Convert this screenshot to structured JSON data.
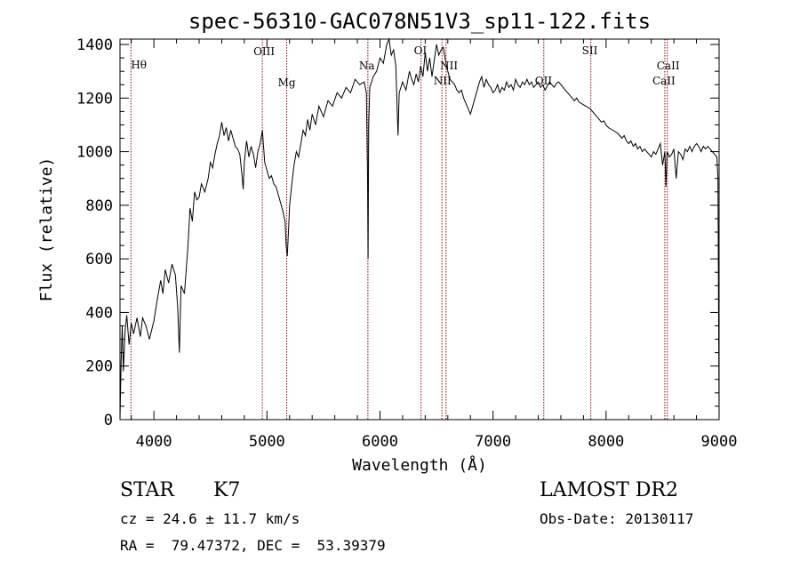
{
  "chart_data": {
    "type": "line",
    "title": "spec-56310-GAC078N51V3_sp11-122.fits",
    "xlabel": "Wavelength (Å)",
    "ylabel": "Flux (relative)",
    "xlim": [
      3700,
      9000
    ],
    "ylim": [
      0,
      1420
    ],
    "x_ticks": [
      4000,
      5000,
      6000,
      7000,
      8000,
      9000
    ],
    "y_ticks": [
      0,
      200,
      400,
      600,
      800,
      1000,
      1200,
      1400
    ],
    "grid": false,
    "line_color": "#000000",
    "marker_color": "#8b0000",
    "series": [
      {
        "points": [
          [
            3700,
            0
          ],
          [
            3710,
            220
          ],
          [
            3720,
            350
          ],
          [
            3730,
            180
          ],
          [
            3745,
            330
          ],
          [
            3760,
            390
          ],
          [
            3780,
            280
          ],
          [
            3800,
            360
          ],
          [
            3820,
            320
          ],
          [
            3850,
            380
          ],
          [
            3880,
            310
          ],
          [
            3900,
            380
          ],
          [
            3930,
            350
          ],
          [
            3960,
            300
          ],
          [
            4000,
            370
          ],
          [
            4030,
            450
          ],
          [
            4060,
            520
          ],
          [
            4080,
            470
          ],
          [
            4100,
            560
          ],
          [
            4130,
            510
          ],
          [
            4160,
            580
          ],
          [
            4190,
            540
          ],
          [
            4210,
            420
          ],
          [
            4225,
            250
          ],
          [
            4240,
            500
          ],
          [
            4270,
            470
          ],
          [
            4300,
            640
          ],
          [
            4320,
            790
          ],
          [
            4340,
            740
          ],
          [
            4360,
            850
          ],
          [
            4380,
            820
          ],
          [
            4400,
            830
          ],
          [
            4420,
            880
          ],
          [
            4450,
            850
          ],
          [
            4480,
            900
          ],
          [
            4500,
            960
          ],
          [
            4520,
            940
          ],
          [
            4540,
            990
          ],
          [
            4560,
            1030
          ],
          [
            4580,
            1060
          ],
          [
            4600,
            1110
          ],
          [
            4620,
            1060
          ],
          [
            4640,
            1090
          ],
          [
            4660,
            1040
          ],
          [
            4680,
            1080
          ],
          [
            4700,
            1050
          ],
          [
            4720,
            1020
          ],
          [
            4740,
            1010
          ],
          [
            4760,
            990
          ],
          [
            4780,
            910
          ],
          [
            4790,
            860
          ],
          [
            4800,
            960
          ],
          [
            4820,
            1040
          ],
          [
            4840,
            980
          ],
          [
            4860,
            1020
          ],
          [
            4880,
            990
          ],
          [
            4900,
            940
          ],
          [
            4920,
            1000
          ],
          [
            4940,
            1030
          ],
          [
            4960,
            1080
          ],
          [
            4980,
            960
          ],
          [
            5000,
            930
          ],
          [
            5020,
            900
          ],
          [
            5040,
            910
          ],
          [
            5060,
            880
          ],
          [
            5080,
            870
          ],
          [
            5100,
            840
          ],
          [
            5120,
            810
          ],
          [
            5140,
            780
          ],
          [
            5160,
            740
          ],
          [
            5170,
            650
          ],
          [
            5180,
            610
          ],
          [
            5190,
            700
          ],
          [
            5200,
            800
          ],
          [
            5220,
            880
          ],
          [
            5240,
            950
          ],
          [
            5260,
            1000
          ],
          [
            5280,
            980
          ],
          [
            5300,
            1030
          ],
          [
            5320,
            1080
          ],
          [
            5340,
            1060
          ],
          [
            5360,
            1120
          ],
          [
            5380,
            1080
          ],
          [
            5400,
            1140
          ],
          [
            5430,
            1100
          ],
          [
            5460,
            1170
          ],
          [
            5500,
            1130
          ],
          [
            5540,
            1190
          ],
          [
            5580,
            1170
          ],
          [
            5620,
            1220
          ],
          [
            5660,
            1200
          ],
          [
            5700,
            1240
          ],
          [
            5740,
            1220
          ],
          [
            5780,
            1270
          ],
          [
            5820,
            1250
          ],
          [
            5860,
            1260
          ],
          [
            5880,
            1220
          ],
          [
            5890,
            900
          ],
          [
            5895,
            600
          ],
          [
            5900,
            1100
          ],
          [
            5910,
            1240
          ],
          [
            5940,
            1280
          ],
          [
            5970,
            1300
          ],
          [
            6000,
            1350
          ],
          [
            6030,
            1330
          ],
          [
            6060,
            1400
          ],
          [
            6080,
            1420
          ],
          [
            6100,
            1360
          ],
          [
            6120,
            1380
          ],
          [
            6140,
            1320
          ],
          [
            6150,
            1180
          ],
          [
            6160,
            1060
          ],
          [
            6170,
            1220
          ],
          [
            6200,
            1260
          ],
          [
            6230,
            1230
          ],
          [
            6260,
            1300
          ],
          [
            6280,
            1270
          ],
          [
            6300,
            1250
          ],
          [
            6320,
            1290
          ],
          [
            6340,
            1260
          ],
          [
            6360,
            1320
          ],
          [
            6380,
            1280
          ],
          [
            6400,
            1370
          ],
          [
            6420,
            1300
          ],
          [
            6440,
            1350
          ],
          [
            6460,
            1280
          ],
          [
            6480,
            1340
          ],
          [
            6500,
            1400
          ],
          [
            6520,
            1360
          ],
          [
            6540,
            1380
          ],
          [
            6560,
            1390
          ],
          [
            6580,
            1340
          ],
          [
            6600,
            1300
          ],
          [
            6620,
            1270
          ],
          [
            6640,
            1260
          ],
          [
            6660,
            1250
          ],
          [
            6680,
            1230
          ],
          [
            6700,
            1220
          ],
          [
            6720,
            1230
          ],
          [
            6740,
            1200
          ],
          [
            6760,
            1180
          ],
          [
            6780,
            1160
          ],
          [
            6800,
            1140
          ],
          [
            6820,
            1170
          ],
          [
            6840,
            1200
          ],
          [
            6860,
            1230
          ],
          [
            6880,
            1260
          ],
          [
            6900,
            1280
          ],
          [
            6920,
            1240
          ],
          [
            6940,
            1270
          ],
          [
            6960,
            1250
          ],
          [
            6980,
            1240
          ],
          [
            7000,
            1220
          ],
          [
            7020,
            1230
          ],
          [
            7040,
            1250
          ],
          [
            7060,
            1220
          ],
          [
            7080,
            1240
          ],
          [
            7100,
            1230
          ],
          [
            7120,
            1260
          ],
          [
            7140,
            1240
          ],
          [
            7160,
            1250
          ],
          [
            7180,
            1230
          ],
          [
            7200,
            1270
          ],
          [
            7220,
            1250
          ],
          [
            7240,
            1240
          ],
          [
            7260,
            1260
          ],
          [
            7280,
            1250
          ],
          [
            7300,
            1270
          ],
          [
            7320,
            1250
          ],
          [
            7340,
            1260
          ],
          [
            7360,
            1240
          ],
          [
            7380,
            1250
          ],
          [
            7400,
            1260
          ],
          [
            7420,
            1240
          ],
          [
            7440,
            1250
          ],
          [
            7460,
            1230
          ],
          [
            7480,
            1245
          ],
          [
            7500,
            1260
          ],
          [
            7520,
            1250
          ],
          [
            7540,
            1240
          ],
          [
            7560,
            1255
          ],
          [
            7580,
            1260
          ],
          [
            7600,
            1250
          ],
          [
            7620,
            1240
          ],
          [
            7640,
            1230
          ],
          [
            7660,
            1220
          ],
          [
            7680,
            1210
          ],
          [
            7700,
            1200
          ],
          [
            7720,
            1190
          ],
          [
            7740,
            1200
          ],
          [
            7760,
            1185
          ],
          [
            7780,
            1180
          ],
          [
            7800,
            1175
          ],
          [
            7820,
            1170
          ],
          [
            7840,
            1165
          ],
          [
            7860,
            1160
          ],
          [
            7880,
            1150
          ],
          [
            7900,
            1140
          ],
          [
            7920,
            1130
          ],
          [
            7940,
            1120
          ],
          [
            7960,
            1110
          ],
          [
            7980,
            1115
          ],
          [
            8000,
            1100
          ],
          [
            8020,
            1090
          ],
          [
            8040,
            1085
          ],
          [
            8060,
            1080
          ],
          [
            8080,
            1075
          ],
          [
            8100,
            1070
          ],
          [
            8120,
            1060
          ],
          [
            8140,
            1050
          ],
          [
            8160,
            1060
          ],
          [
            8180,
            1040
          ],
          [
            8200,
            1030
          ],
          [
            8220,
            1040
          ],
          [
            8240,
            1020
          ],
          [
            8260,
            1030
          ],
          [
            8280,
            1010
          ],
          [
            8300,
            1020
          ],
          [
            8320,
            1000
          ],
          [
            8340,
            1010
          ],
          [
            8360,
            1000
          ],
          [
            8380,
            990
          ],
          [
            8400,
            980
          ],
          [
            8420,
            1000
          ],
          [
            8440,
            990
          ],
          [
            8460,
            1010
          ],
          [
            8480,
            1030
          ],
          [
            8500,
            950
          ],
          [
            8520,
            1000
          ],
          [
            8530,
            870
          ],
          [
            8540,
            1000
          ],
          [
            8560,
            980
          ],
          [
            8580,
            990
          ],
          [
            8600,
            1010
          ],
          [
            8620,
            900
          ],
          [
            8640,
            1000
          ],
          [
            8660,
            990
          ],
          [
            8680,
            970
          ],
          [
            8700,
            1010
          ],
          [
            8720,
            1000
          ],
          [
            8740,
            1020
          ],
          [
            8760,
            1000
          ],
          [
            8780,
            1020
          ],
          [
            8800,
            1030
          ],
          [
            8820,
            1020
          ],
          [
            8840,
            1000
          ],
          [
            8860,
            1020
          ],
          [
            8880,
            1010
          ],
          [
            8900,
            1020
          ],
          [
            8920,
            1010
          ],
          [
            8940,
            1000
          ],
          [
            8960,
            990
          ],
          [
            8980,
            980
          ],
          [
            8990,
            900
          ],
          [
            9000,
            0
          ]
        ]
      }
    ],
    "line_markers": [
      {
        "x": 3797,
        "label": "Hθ"
      },
      {
        "x": 4959,
        "label": "OIII"
      },
      {
        "x": 5175,
        "label": "Mg"
      },
      {
        "x": 5893,
        "label": "Na"
      },
      {
        "x": 6363,
        "label": "OI"
      },
      {
        "x": 6548,
        "label": "NII"
      },
      {
        "x": 6584,
        "label": "NII"
      },
      {
        "x": 7449,
        "label": "OII"
      },
      {
        "x": 7865,
        "label": "SII"
      },
      {
        "x": 8520,
        "label": "CaII"
      },
      {
        "x": 8542,
        "label": "CaII"
      }
    ]
  },
  "info": {
    "object_class": "STAR",
    "subclass": "K7",
    "survey": "LAMOST DR2",
    "cz": "cz = 24.6 ± 11.7 km/s",
    "obs_date": "Obs-Date: 20130117",
    "coords": "RA =  79.47372, DEC =  53.39379"
  }
}
